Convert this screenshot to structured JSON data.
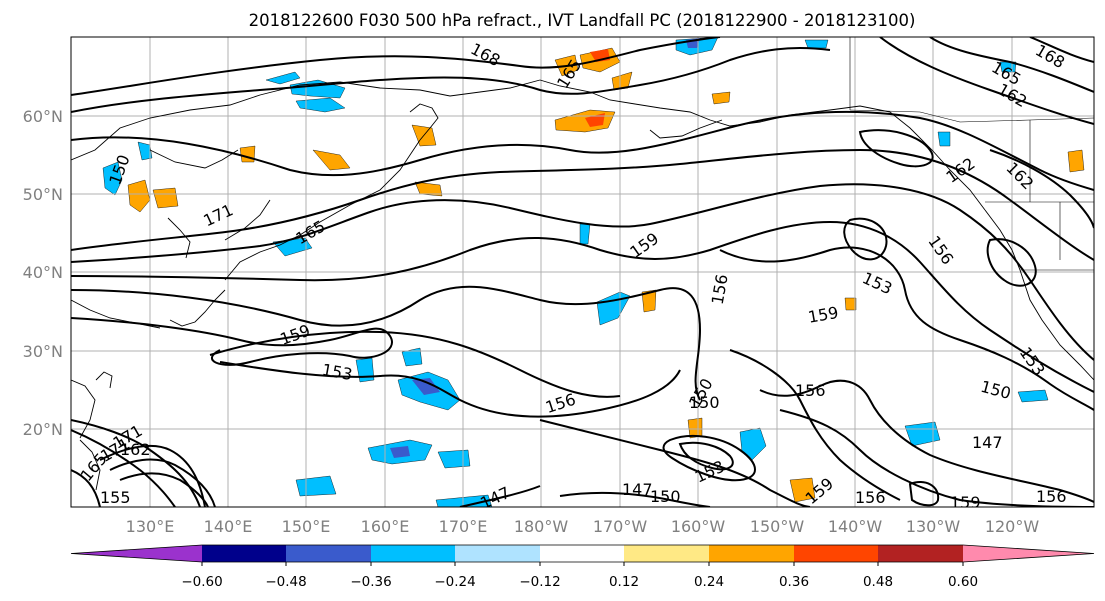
{
  "title": "2018122600 F030 500 hPa refract., IVT Landfall PC (2018122900 - 2018123100)",
  "map": {
    "lat_labels": [
      "60°N",
      "50°N",
      "40°N",
      "30°N",
      "20°N"
    ],
    "lat_values": [
      60,
      50,
      40,
      30,
      20
    ],
    "lon_labels": [
      "130°E",
      "140°E",
      "150°E",
      "160°E",
      "170°E",
      "180°W",
      "170°W",
      "160°W",
      "150°W",
      "140°W",
      "130°W",
      "120°W"
    ],
    "lon_values": [
      130,
      140,
      150,
      160,
      170,
      180,
      190,
      200,
      210,
      220,
      230,
      240
    ],
    "lon_range": [
      114.5,
      245
    ],
    "lat_range": [
      10,
      70
    ],
    "grid": true,
    "contour_labels": [
      "168",
      "165",
      "162",
      "171",
      "165",
      "159",
      "156",
      "153",
      "159",
      "153",
      "150",
      "156",
      "150",
      "147",
      "153",
      "147",
      "150",
      "156",
      "159",
      "156",
      "150",
      "153",
      "162",
      "168",
      "165",
      "162",
      "162",
      "156",
      "159",
      "150",
      "147",
      "171",
      "171",
      "162",
      "165",
      "155",
      "150",
      "159",
      "147",
      "171"
    ]
  },
  "colorbar": {
    "tick_labels": [
      "−0.60",
      "−0.48",
      "−0.36",
      "−0.24",
      "−0.12",
      "0.12",
      "0.24",
      "0.36",
      "0.48",
      "0.60"
    ],
    "bin_colors": [
      "#9b32cd",
      "#00008b",
      "#3a5bcc",
      "#00bfff",
      "#afe3ff",
      "#ffffff",
      "#ffe985",
      "#ffa500",
      "#ff4500",
      "#b22222",
      "#ff8aad"
    ],
    "extend": "both"
  }
}
